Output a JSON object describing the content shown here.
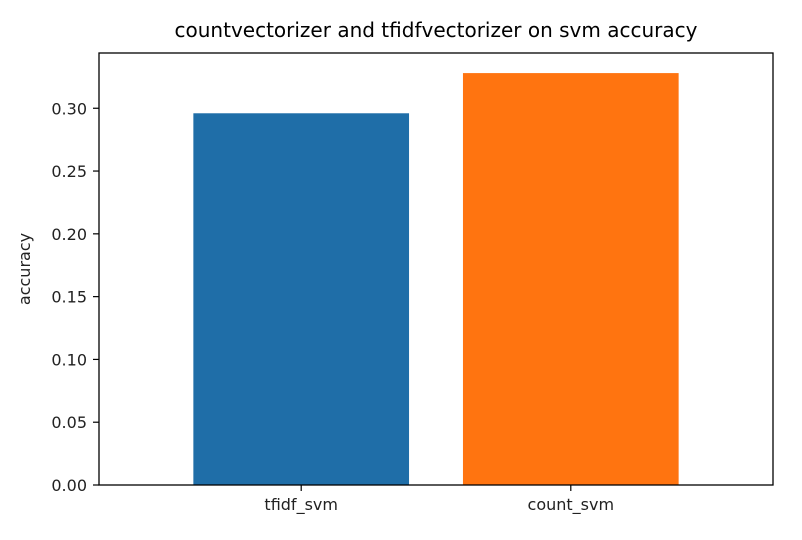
{
  "chart_data": {
    "type": "bar",
    "title": "countvectorizer and tfidfvectorizer on svm  accuracy",
    "xlabel": "",
    "ylabel": "accuracy",
    "categories": [
      "tfidf_svm",
      "count_svm"
    ],
    "values": [
      0.296,
      0.328
    ],
    "colors": [
      "#1f6ea8",
      "#ff7410"
    ],
    "ylim": [
      0,
      0.344
    ],
    "yticks": [
      0.0,
      0.05,
      0.1,
      0.15,
      0.2,
      0.25,
      0.3
    ],
    "ytick_labels": [
      "0.00",
      "0.05",
      "0.10",
      "0.15",
      "0.20",
      "0.25",
      "0.30"
    ],
    "grid": false,
    "legend": "none"
  }
}
